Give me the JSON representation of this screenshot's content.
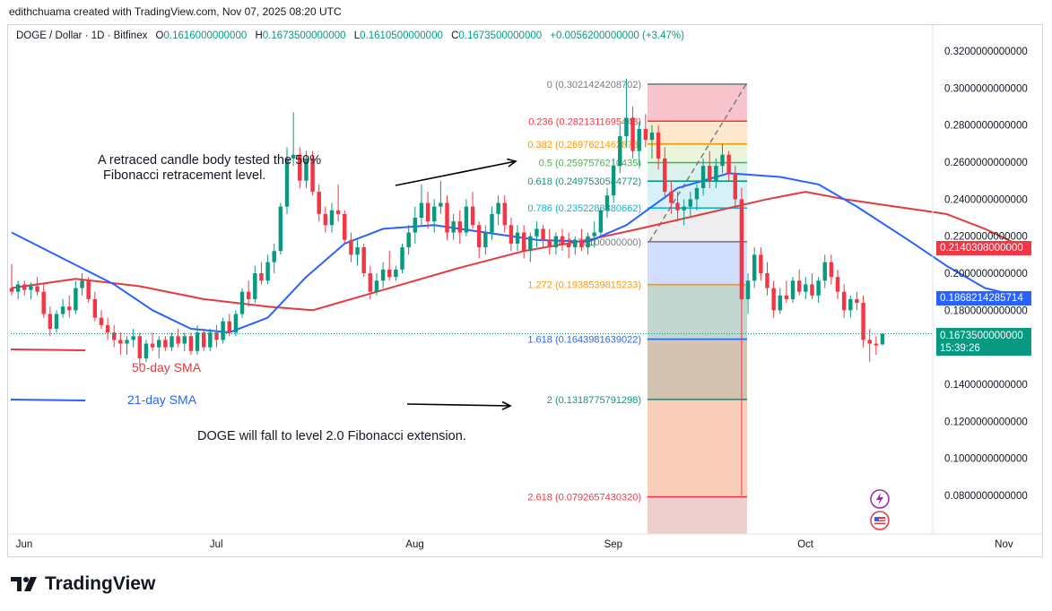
{
  "attribution": "edithchuama created with TradingView.com, Nov 07, 2025 08:20 UTC",
  "symbol": {
    "name": "DOGE / Dollar · 1D · Bitfinex",
    "open_label": "O",
    "open": "0.1616000000000",
    "high_label": "H",
    "high": "0.1673500000000",
    "low_label": "L",
    "low": "0.1610500000000",
    "close_label": "C",
    "close": "0.1673500000000",
    "change": "+0.0056200000000 (+3.47%)"
  },
  "brand": "TradingView",
  "annotations": {
    "candle_note_line1": "A retraced candle body tested the 50%",
    "candle_note_line2": "Fibonacci retracement level.",
    "forecast": "DOGE  will fall to level 2.0 Fibonacci extension.",
    "sma50_label": "50-day SMA",
    "sma21_label": "21-day SMA"
  },
  "price_tags": {
    "sma50": "0.2140308000000",
    "sma21": "0.1868214285714",
    "last_price": "0.1673500000000",
    "countdown": "15:39:26"
  },
  "colors": {
    "up": "#089981",
    "down": "#f23645",
    "sma50": "#e5393f",
    "sma21": "#2962ff",
    "text": "#131722",
    "axis_text": "#131722"
  },
  "chart_data": {
    "type": "candlestick",
    "ylim": [
      0.075,
      0.33
    ],
    "y_ticks": [
      {
        "value": 0.32,
        "label": "0.3200000000000"
      },
      {
        "value": 0.3,
        "label": "0.3000000000000"
      },
      {
        "value": 0.28,
        "label": "0.2800000000000"
      },
      {
        "value": 0.26,
        "label": "0.2600000000000"
      },
      {
        "value": 0.24,
        "label": "0.2400000000000"
      },
      {
        "value": 0.22,
        "label": "0.2200000000000"
      },
      {
        "value": 0.2,
        "label": "0.2000000000000"
      },
      {
        "value": 0.18,
        "label": "0.1800000000000"
      },
      {
        "value": 0.14,
        "label": "0.1400000000000"
      },
      {
        "value": 0.12,
        "label": "0.1200000000000"
      },
      {
        "value": 0.1,
        "label": "0.1000000000000"
      },
      {
        "value": 0.08,
        "label": "0.0800000000000"
      }
    ],
    "x_ticks": [
      {
        "index": 0,
        "label": "Jun"
      },
      {
        "index": 30,
        "label": "Jul"
      },
      {
        "index": 61,
        "label": "Aug"
      },
      {
        "index": 92,
        "label": "Sep"
      },
      {
        "index": 122,
        "label": "Oct"
      },
      {
        "index": 153,
        "label": "Nov"
      }
    ],
    "candles": [
      [
        0.192,
        0.205,
        0.188,
        0.19
      ],
      [
        0.19,
        0.196,
        0.186,
        0.194
      ],
      [
        0.194,
        0.196,
        0.188,
        0.191
      ],
      [
        0.191,
        0.195,
        0.186,
        0.193
      ],
      [
        0.193,
        0.198,
        0.188,
        0.19
      ],
      [
        0.19,
        0.194,
        0.176,
        0.178
      ],
      [
        0.178,
        0.182,
        0.166,
        0.17
      ],
      [
        0.17,
        0.18,
        0.168,
        0.178
      ],
      [
        0.178,
        0.186,
        0.176,
        0.182
      ],
      [
        0.182,
        0.188,
        0.176,
        0.18
      ],
      [
        0.18,
        0.196,
        0.178,
        0.192
      ],
      [
        0.192,
        0.2,
        0.188,
        0.196
      ],
      [
        0.196,
        0.198,
        0.184,
        0.186
      ],
      [
        0.186,
        0.19,
        0.174,
        0.176
      ],
      [
        0.176,
        0.18,
        0.17,
        0.172
      ],
      [
        0.172,
        0.176,
        0.164,
        0.168
      ],
      [
        0.168,
        0.172,
        0.16,
        0.164
      ],
      [
        0.164,
        0.168,
        0.156,
        0.162
      ],
      [
        0.162,
        0.166,
        0.156,
        0.164
      ],
      [
        0.164,
        0.17,
        0.16,
        0.166
      ],
      [
        0.166,
        0.168,
        0.15,
        0.154
      ],
      [
        0.154,
        0.164,
        0.152,
        0.162
      ],
      [
        0.162,
        0.168,
        0.158,
        0.16
      ],
      [
        0.16,
        0.166,
        0.154,
        0.164
      ],
      [
        0.164,
        0.166,
        0.158,
        0.16
      ],
      [
        0.16,
        0.168,
        0.158,
        0.166
      ],
      [
        0.166,
        0.17,
        0.16,
        0.162
      ],
      [
        0.162,
        0.168,
        0.158,
        0.166
      ],
      [
        0.166,
        0.168,
        0.156,
        0.158
      ],
      [
        0.158,
        0.172,
        0.156,
        0.168
      ],
      [
        0.168,
        0.17,
        0.158,
        0.16
      ],
      [
        0.16,
        0.17,
        0.158,
        0.168
      ],
      [
        0.168,
        0.172,
        0.16,
        0.164
      ],
      [
        0.164,
        0.176,
        0.162,
        0.174
      ],
      [
        0.174,
        0.178,
        0.166,
        0.168
      ],
      [
        0.168,
        0.18,
        0.166,
        0.178
      ],
      [
        0.178,
        0.192,
        0.176,
        0.19
      ],
      [
        0.19,
        0.196,
        0.182,
        0.186
      ],
      [
        0.186,
        0.204,
        0.184,
        0.2
      ],
      [
        0.2,
        0.206,
        0.194,
        0.196
      ],
      [
        0.196,
        0.21,
        0.194,
        0.206
      ],
      [
        0.206,
        0.216,
        0.2,
        0.212
      ],
      [
        0.212,
        0.238,
        0.21,
        0.236
      ],
      [
        0.236,
        0.268,
        0.232,
        0.262
      ],
      [
        0.262,
        0.287,
        0.258,
        0.264
      ],
      [
        0.264,
        0.268,
        0.246,
        0.25
      ],
      [
        0.25,
        0.266,
        0.246,
        0.262
      ],
      [
        0.262,
        0.266,
        0.242,
        0.244
      ],
      [
        0.244,
        0.248,
        0.228,
        0.232
      ],
      [
        0.232,
        0.236,
        0.222,
        0.226
      ],
      [
        0.226,
        0.238,
        0.222,
        0.234
      ],
      [
        0.234,
        0.248,
        0.228,
        0.232
      ],
      [
        0.232,
        0.234,
        0.216,
        0.218
      ],
      [
        0.218,
        0.222,
        0.206,
        0.21
      ],
      [
        0.21,
        0.218,
        0.204,
        0.214
      ],
      [
        0.214,
        0.216,
        0.198,
        0.2
      ],
      [
        0.2,
        0.204,
        0.186,
        0.19
      ],
      [
        0.19,
        0.2,
        0.188,
        0.196
      ],
      [
        0.196,
        0.206,
        0.192,
        0.202
      ],
      [
        0.202,
        0.212,
        0.196,
        0.198
      ],
      [
        0.198,
        0.204,
        0.196,
        0.202
      ],
      [
        0.202,
        0.216,
        0.2,
        0.214
      ],
      [
        0.214,
        0.226,
        0.21,
        0.222
      ],
      [
        0.222,
        0.236,
        0.216,
        0.23
      ],
      [
        0.23,
        0.248,
        0.226,
        0.238
      ],
      [
        0.238,
        0.244,
        0.224,
        0.228
      ],
      [
        0.228,
        0.24,
        0.222,
        0.236
      ],
      [
        0.236,
        0.25,
        0.232,
        0.238
      ],
      [
        0.238,
        0.242,
        0.218,
        0.222
      ],
      [
        0.222,
        0.232,
        0.218,
        0.228
      ],
      [
        0.228,
        0.234,
        0.216,
        0.222
      ],
      [
        0.222,
        0.24,
        0.22,
        0.236
      ],
      [
        0.236,
        0.244,
        0.224,
        0.226
      ],
      [
        0.226,
        0.228,
        0.208,
        0.214
      ],
      [
        0.214,
        0.226,
        0.21,
        0.222
      ],
      [
        0.222,
        0.236,
        0.218,
        0.232
      ],
      [
        0.232,
        0.242,
        0.226,
        0.238
      ],
      [
        0.238,
        0.242,
        0.222,
        0.226
      ],
      [
        0.226,
        0.23,
        0.212,
        0.216
      ],
      [
        0.216,
        0.226,
        0.212,
        0.222
      ],
      [
        0.222,
        0.226,
        0.208,
        0.212
      ],
      [
        0.212,
        0.222,
        0.206,
        0.22
      ],
      [
        0.22,
        0.228,
        0.214,
        0.224
      ],
      [
        0.224,
        0.226,
        0.214,
        0.218
      ],
      [
        0.218,
        0.224,
        0.21,
        0.214
      ],
      [
        0.214,
        0.222,
        0.21,
        0.22
      ],
      [
        0.22,
        0.224,
        0.212,
        0.216
      ],
      [
        0.216,
        0.222,
        0.208,
        0.214
      ],
      [
        0.214,
        0.22,
        0.21,
        0.218
      ],
      [
        0.218,
        0.224,
        0.212,
        0.214
      ],
      [
        0.214,
        0.222,
        0.21,
        0.22
      ],
      [
        0.22,
        0.228,
        0.214,
        0.222
      ],
      [
        0.222,
        0.236,
        0.22,
        0.234
      ],
      [
        0.234,
        0.246,
        0.23,
        0.242
      ],
      [
        0.242,
        0.262,
        0.238,
        0.258
      ],
      [
        0.258,
        0.28,
        0.254,
        0.274
      ],
      [
        0.274,
        0.305,
        0.268,
        0.284
      ],
      [
        0.284,
        0.29,
        0.262,
        0.266
      ],
      [
        0.266,
        0.282,
        0.258,
        0.278
      ],
      [
        0.278,
        0.286,
        0.268,
        0.272
      ],
      [
        0.272,
        0.28,
        0.262,
        0.276
      ],
      [
        0.276,
        0.28,
        0.256,
        0.262
      ],
      [
        0.262,
        0.268,
        0.24,
        0.244
      ],
      [
        0.244,
        0.25,
        0.232,
        0.238
      ],
      [
        0.238,
        0.244,
        0.228,
        0.234
      ],
      [
        0.234,
        0.24,
        0.226,
        0.236
      ],
      [
        0.236,
        0.244,
        0.23,
        0.24
      ],
      [
        0.24,
        0.248,
        0.234,
        0.246
      ],
      [
        0.246,
        0.262,
        0.242,
        0.258
      ],
      [
        0.258,
        0.266,
        0.246,
        0.25
      ],
      [
        0.25,
        0.262,
        0.246,
        0.258
      ],
      [
        0.258,
        0.27,
        0.254,
        0.264
      ],
      [
        0.264,
        0.266,
        0.25,
        0.254
      ],
      [
        0.254,
        0.258,
        0.236,
        0.24
      ],
      [
        0.24,
        0.246,
        0.08,
        0.186
      ],
      [
        0.186,
        0.2,
        0.178,
        0.196
      ],
      [
        0.196,
        0.214,
        0.192,
        0.21
      ],
      [
        0.21,
        0.214,
        0.196,
        0.2
      ],
      [
        0.2,
        0.206,
        0.188,
        0.192
      ],
      [
        0.192,
        0.196,
        0.176,
        0.18
      ],
      [
        0.18,
        0.192,
        0.178,
        0.188
      ],
      [
        0.188,
        0.196,
        0.184,
        0.186
      ],
      [
        0.186,
        0.198,
        0.184,
        0.196
      ],
      [
        0.196,
        0.202,
        0.188,
        0.19
      ],
      [
        0.19,
        0.198,
        0.186,
        0.194
      ],
      [
        0.194,
        0.2,
        0.186,
        0.188
      ],
      [
        0.188,
        0.198,
        0.184,
        0.196
      ],
      [
        0.196,
        0.21,
        0.192,
        0.206
      ],
      [
        0.206,
        0.21,
        0.194,
        0.198
      ],
      [
        0.198,
        0.202,
        0.186,
        0.19
      ],
      [
        0.19,
        0.194,
        0.176,
        0.18
      ],
      [
        0.18,
        0.188,
        0.176,
        0.186
      ],
      [
        0.186,
        0.19,
        0.18,
        0.184
      ],
      [
        0.184,
        0.188,
        0.16,
        0.164
      ],
      [
        0.164,
        0.17,
        0.152,
        0.162
      ],
      [
        0.162,
        0.166,
        0.156,
        0.161
      ],
      [
        0.1616,
        0.16735,
        0.16105,
        0.16735
      ]
    ],
    "candle_x_start": 13,
    "candle_x_end": 984,
    "sma50": {
      "name": "50-day SMA",
      "points": [
        [
          0,
          0.192
        ],
        [
          10,
          0.197
        ],
        [
          20,
          0.193
        ],
        [
          30,
          0.186
        ],
        [
          40,
          0.182
        ],
        [
          47,
          0.18
        ],
        [
          55,
          0.188
        ],
        [
          62,
          0.195
        ],
        [
          70,
          0.203
        ],
        [
          80,
          0.212
        ],
        [
          90,
          0.218
        ],
        [
          98,
          0.224
        ],
        [
          108,
          0.232
        ],
        [
          118,
          0.24
        ],
        [
          124,
          0.244
        ],
        [
          130,
          0.24
        ],
        [
          138,
          0.236
        ],
        [
          146,
          0.232
        ],
        [
          152,
          0.224
        ],
        [
          158,
          0.214
        ]
      ]
    },
    "sma21": {
      "name": "21-day SMA",
      "points": [
        [
          0,
          0.222
        ],
        [
          8,
          0.208
        ],
        [
          16,
          0.194
        ],
        [
          22,
          0.18
        ],
        [
          28,
          0.17
        ],
        [
          34,
          0.168
        ],
        [
          40,
          0.176
        ],
        [
          46,
          0.198
        ],
        [
          52,
          0.216
        ],
        [
          58,
          0.224
        ],
        [
          66,
          0.226
        ],
        [
          74,
          0.222
        ],
        [
          82,
          0.218
        ],
        [
          90,
          0.217
        ],
        [
          96,
          0.226
        ],
        [
          104,
          0.246
        ],
        [
          112,
          0.254
        ],
        [
          120,
          0.252
        ],
        [
          126,
          0.248
        ],
        [
          132,
          0.236
        ],
        [
          140,
          0.218
        ],
        [
          146,
          0.204
        ],
        [
          152,
          0.192
        ],
        [
          158,
          0.187
        ]
      ]
    },
    "fibonacci": {
      "levels": [
        {
          "ratio": "0",
          "price": "0.3021424208702",
          "label": "0 (0.3021424208702)",
          "value": 0.3021424208702,
          "color": "#787b86"
        },
        {
          "ratio": "0.236",
          "price": "0.2821311695448",
          "label": "0.236 (0.2821311695448)",
          "value": 0.2821311695448,
          "color": "#f23645"
        },
        {
          "ratio": "0.382",
          "price": "0.2697621462878",
          "label": "0.382 (0.2697621462878)",
          "value": 0.2697621462878,
          "color": "#ff9800"
        },
        {
          "ratio": "0.5",
          "price": "0.2597576210435",
          "label": "0.5 (0.2597576210435)",
          "value": 0.2597576210435,
          "color": "#4caf50"
        },
        {
          "ratio": "0.618",
          "price": "0.2497530584772",
          "label": "0.618 (0.2497530584772)",
          "value": 0.2497530584772,
          "color": "#089981"
        },
        {
          "ratio": "0.786",
          "price": "0.2352283380662",
          "label": "0.786 (0.2352283380662)",
          "value": 0.2352283380662,
          "color": "#00bcd4"
        },
        {
          "ratio": "1",
          "price": "0.2170100000000",
          "label": "0.2170100000000)",
          "value": 0.21701,
          "color": "#787b86"
        },
        {
          "ratio": "1.272",
          "price": "0.1938539815233",
          "label": "1.272 (0.1938539815233)",
          "value": 0.1938539815233,
          "color": "#ff9800"
        },
        {
          "ratio": "1.618",
          "price": "0.1643981639022",
          "label": "1.618 (0.1643981639022)",
          "value": 0.1643981639022,
          "color": "#2962ff"
        },
        {
          "ratio": "2",
          "price": "0.1318775791298",
          "label": "2 (0.1318775791298)",
          "value": 0.1318775791298,
          "color": "#089981"
        },
        {
          "ratio": "2.618",
          "price": "0.0792657430320",
          "label": "2.618 (0.0792657430320)",
          "value": 0.079265743032,
          "color": "#f23645"
        }
      ]
    }
  }
}
